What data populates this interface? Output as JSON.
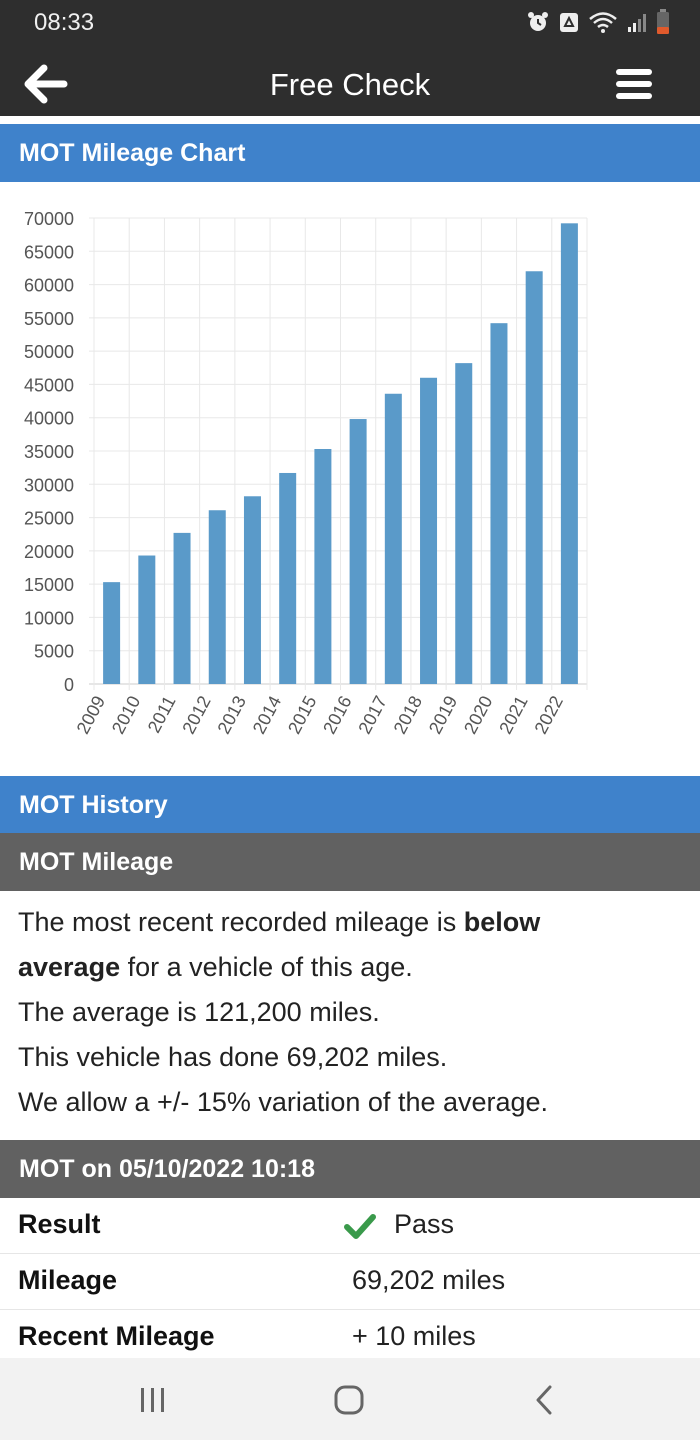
{
  "status_bar": {
    "time": "08:33"
  },
  "app_bar": {
    "title": "Free Check"
  },
  "chart_section": {
    "title": "MOT Mileage Chart"
  },
  "chart_data": {
    "type": "bar",
    "categories": [
      "2009",
      "2010",
      "2011",
      "2012",
      "2013",
      "2014",
      "2015",
      "2016",
      "2017",
      "2018",
      "2019",
      "2020",
      "2021",
      "2022"
    ],
    "values": [
      15300,
      19300,
      22700,
      26100,
      28200,
      31700,
      35300,
      39800,
      43600,
      46000,
      48200,
      54200,
      62000,
      69202
    ],
    "ylim": [
      0,
      70000
    ],
    "yticks": [
      "0",
      "5000",
      "10000",
      "15000",
      "20000",
      "25000",
      "30000",
      "35000",
      "40000",
      "45000",
      "50000",
      "55000",
      "60000",
      "65000",
      "70000"
    ],
    "bar_color": "#5a9ac9",
    "grid": true
  },
  "history_section": {
    "title": "MOT History"
  },
  "mileage_section": {
    "title": "MOT Mileage",
    "line1_pre": "The most recent recorded mileage is ",
    "line1_bold": "below",
    "line2_bold": "average",
    "line2_post": " for a vehicle of this age.",
    "line3": "The average is 121,200 miles.",
    "line4": "This vehicle has done 69,202 miles.",
    "line5": "We allow a +/- 15% variation of the average."
  },
  "mot_record": {
    "title": "MOT on 05/10/2022 10:18",
    "rows": [
      {
        "label": "Result",
        "value": "Pass",
        "icon": "check-icon"
      },
      {
        "label": "Mileage",
        "value": "69,202 miles"
      },
      {
        "label": "Recent Mileage",
        "value": "+ 10 miles"
      }
    ]
  },
  "colors": {
    "header_blue": "#3f82cb",
    "header_gray": "#616161",
    "dark_bar": "#2e2e2e",
    "pass_green": "#3a9a4b"
  }
}
